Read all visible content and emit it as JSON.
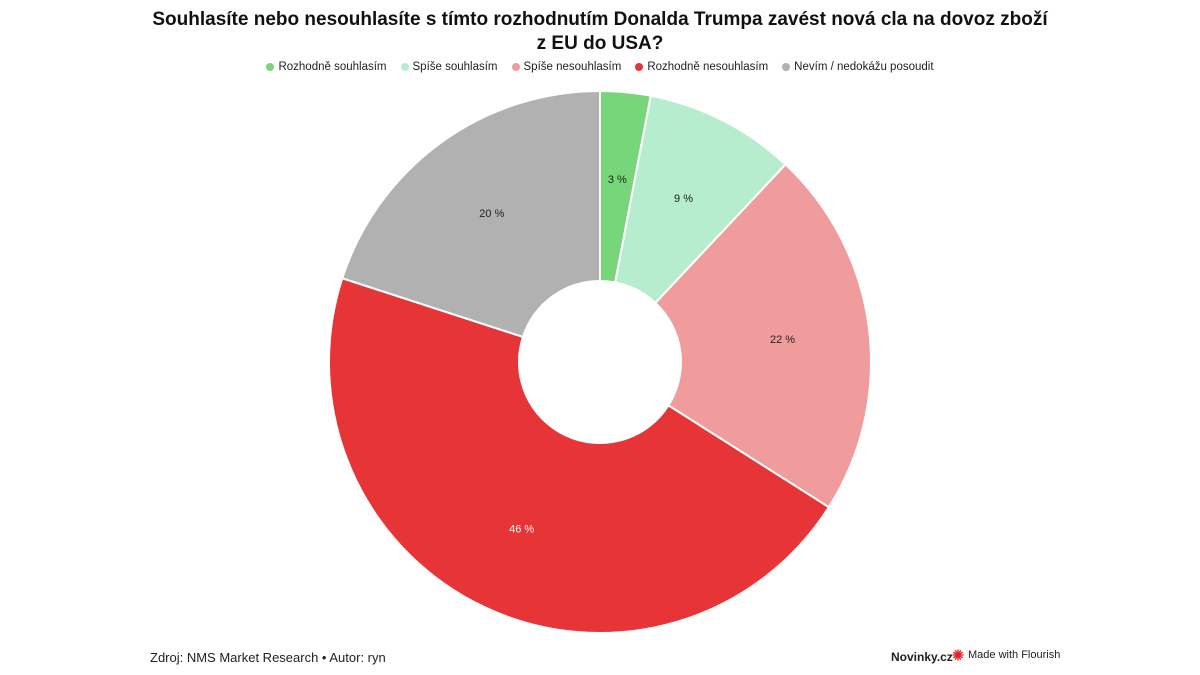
{
  "chart_data": {
    "type": "pie",
    "variant": "donut",
    "title": "Souhlasíte nebo nesouhlasíte s tímto rozhodnutím Donalda Trumpa zavést nová cla na dovoz zboží z EU do USA?",
    "legend_position": "top",
    "slices": [
      {
        "label": "Rozhodně souhlasím",
        "value": 3,
        "display": "3 %",
        "color": "#77d67a"
      },
      {
        "label": "Spíše souhlasím",
        "value": 9,
        "display": "9 %",
        "color": "#b6edcf"
      },
      {
        "label": "Spíše nesouhlasím",
        "value": 22,
        "display": "22 %",
        "color": "#f09b9c"
      },
      {
        "label": "Rozhodně nesouhlasím",
        "value": 46,
        "display": "46 %",
        "color": "#e73437"
      },
      {
        "label": "Nevím / nedokážu posoudit",
        "value": 20,
        "display": "20 %",
        "color": "#b1b1b1"
      }
    ]
  },
  "footer": {
    "source": "Zdroj: NMS Market Research • Autor: ryn",
    "brand": "Novinky.cz",
    "made_with": "Made with Flourish",
    "made_with_icon": "flourish-burst-icon",
    "made_with_icon_color": "#e0262a"
  }
}
